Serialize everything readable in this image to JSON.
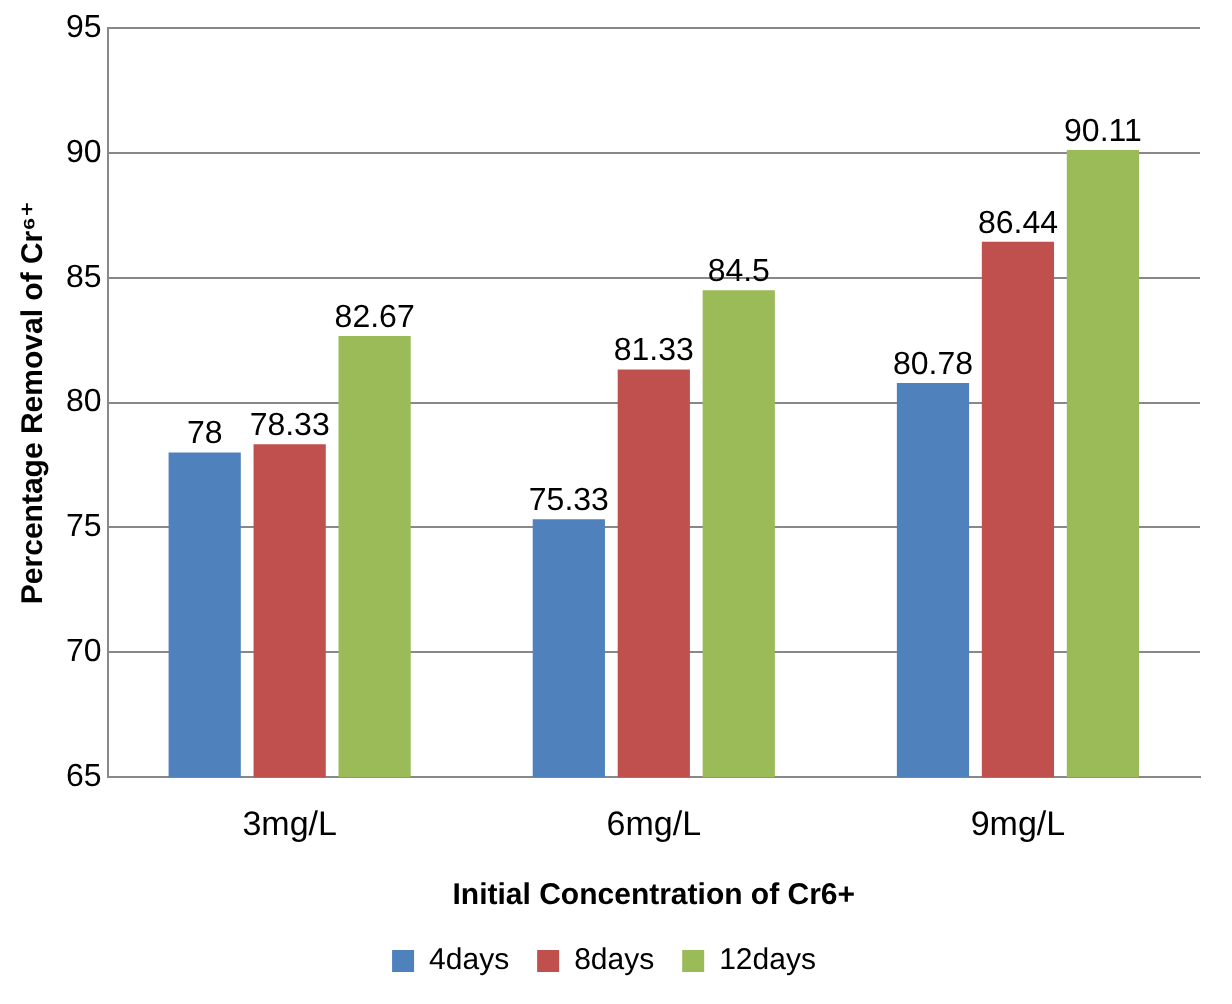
{
  "chart_data": {
    "type": "bar",
    "xlabel": "Initial Concentration of Cr6+",
    "ylabel": "Percentage Removal of Cr⁶⁺",
    "categories": [
      "3mg/L",
      "6mg/L",
      "9mg/L"
    ],
    "series": [
      {
        "name": "4days",
        "color": "#4f81bd",
        "values": [
          78,
          75.33,
          80.78
        ]
      },
      {
        "name": "8days",
        "color": "#c0504d",
        "values": [
          78.33,
          81.33,
          86.44
        ]
      },
      {
        "name": "12days",
        "color": "#9bbb59",
        "values": [
          82.67,
          84.5,
          90.11
        ]
      }
    ],
    "ylim": [
      65,
      95
    ],
    "yticks": [
      65,
      70,
      75,
      80,
      85,
      90,
      95
    ],
    "grid": "y",
    "legend": "bottom",
    "data_labels": true
  }
}
